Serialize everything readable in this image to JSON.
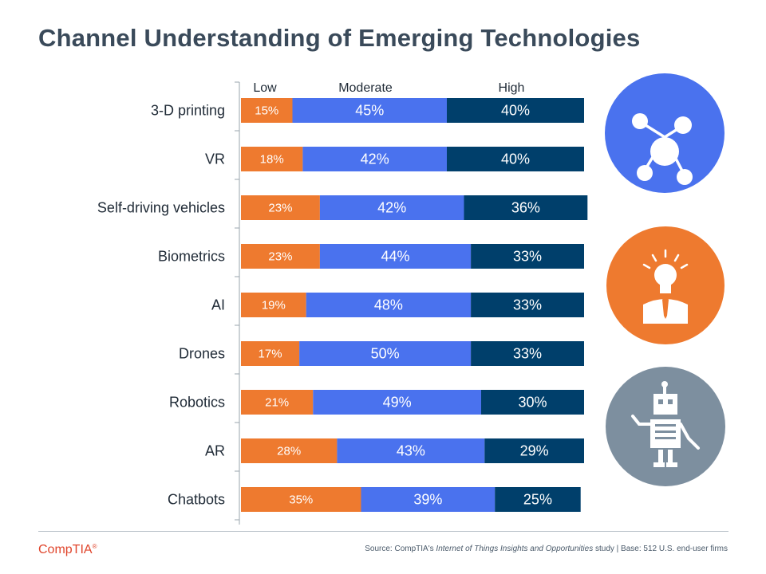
{
  "title": "Channel Understanding of Emerging Technologies",
  "chart_data": {
    "type": "bar",
    "stacked": true,
    "orientation": "horizontal",
    "legend": [
      "Low",
      "Moderate",
      "High"
    ],
    "categories": [
      "3-D printing",
      "VR",
      "Self-driving vehicles",
      "Biometrics",
      "AI",
      "Drones",
      "Robotics",
      "AR",
      "Chatbots"
    ],
    "series": [
      {
        "name": "Low",
        "values": [
          15,
          18,
          23,
          23,
          19,
          17,
          21,
          28,
          35
        ],
        "color": "#ee7a2f"
      },
      {
        "name": "Moderate",
        "values": [
          45,
          42,
          42,
          44,
          48,
          50,
          49,
          43,
          39
        ],
        "color": "#4a72ee"
      },
      {
        "name": "High",
        "values": [
          40,
          40,
          36,
          33,
          33,
          33,
          30,
          29,
          25
        ],
        "color": "#003f6b"
      }
    ],
    "value_suffix": "%",
    "xlim": [
      0,
      100
    ]
  },
  "icons": [
    {
      "name": "network-hub-icon",
      "color": "#4a72ee"
    },
    {
      "name": "lightbulb-person-icon",
      "color": "#ee7a2f"
    },
    {
      "name": "robot-icon",
      "color": "#7d8f9f"
    }
  ],
  "footer": {
    "logo": "CompTIA",
    "logo_tm": "®",
    "source_prefix": "Source: CompTIA's ",
    "source_italic": "Internet of Things Insights and Opportunities",
    "source_suffix": " study | Base: 512 U.S. end-user firms"
  }
}
